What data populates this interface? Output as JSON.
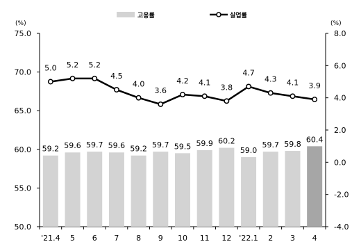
{
  "chart_data": {
    "type": "bar",
    "categories": [
      "'21.4",
      "5",
      "6",
      "7",
      "8",
      "9",
      "10",
      "11",
      "12",
      "'22.1",
      "2",
      "3",
      "4"
    ],
    "y_left_unit": "(%)",
    "y_right_unit": "(%)",
    "y_left_range": [
      50.0,
      75.0
    ],
    "y_left_ticks": [
      "50.0",
      "55.0",
      "60.0",
      "65.0",
      "70.0",
      "75.0"
    ],
    "y_right_range": [
      -4.0,
      8.0
    ],
    "y_right_ticks": [
      "-4.0",
      "-2.0",
      "0.0",
      "2.0",
      "4.0",
      "6.0",
      "8.0"
    ],
    "series": [
      {
        "name": "고용률",
        "type": "bar",
        "axis": "left",
        "values": [
          59.2,
          59.6,
          59.7,
          59.6,
          59.2,
          59.7,
          59.5,
          59.9,
          60.2,
          59.0,
          59.7,
          59.8,
          60.4
        ],
        "labels": [
          "59.2",
          "59.6",
          "59.7",
          "59.6",
          "59.2",
          "59.7",
          "59.5",
          "59.9",
          "60.2",
          "59.0",
          "59.7",
          "59.8",
          "60.4"
        ]
      },
      {
        "name": "실업률",
        "type": "line",
        "axis": "right",
        "values": [
          5.0,
          5.2,
          5.2,
          4.5,
          4.0,
          3.6,
          4.2,
          4.1,
          3.8,
          4.7,
          4.3,
          4.1,
          3.9
        ],
        "labels": [
          "5.0",
          "5.2",
          "5.2",
          "4.5",
          "4.0",
          "3.6",
          "4.2",
          "4.1",
          "3.8",
          "4.7",
          "4.3",
          "4.1",
          "3.9"
        ]
      }
    ],
    "legend_position": "top",
    "grid": false,
    "colors": {
      "bar": "#d3d3d3",
      "bar_last": "#a6a6a6",
      "line": "#000000",
      "axis": "#000000"
    }
  }
}
